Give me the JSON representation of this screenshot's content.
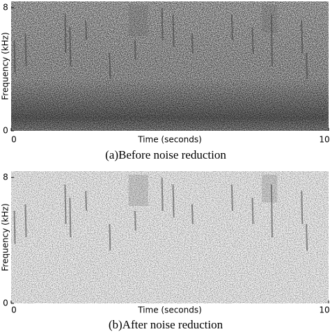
{
  "figure": {
    "panels": [
      {
        "caption": "(a)Before noise reduction",
        "xlabel": "Time (seconds)",
        "ylabel": "Frequency (kHz)",
        "xlim": [
          0,
          10
        ],
        "ylim": [
          0,
          8.4
        ],
        "xticks": [
          0,
          10
        ],
        "yticks": [
          0,
          8
        ]
      },
      {
        "caption": "(b)After noise reduction",
        "xlabel": "Time (seconds)",
        "ylabel": "Frequency (kHz)",
        "xlim": [
          0,
          10
        ],
        "ylim": [
          0,
          8.4
        ],
        "xticks": [
          0,
          10
        ],
        "yticks": [
          0,
          8
        ]
      }
    ]
  }
}
